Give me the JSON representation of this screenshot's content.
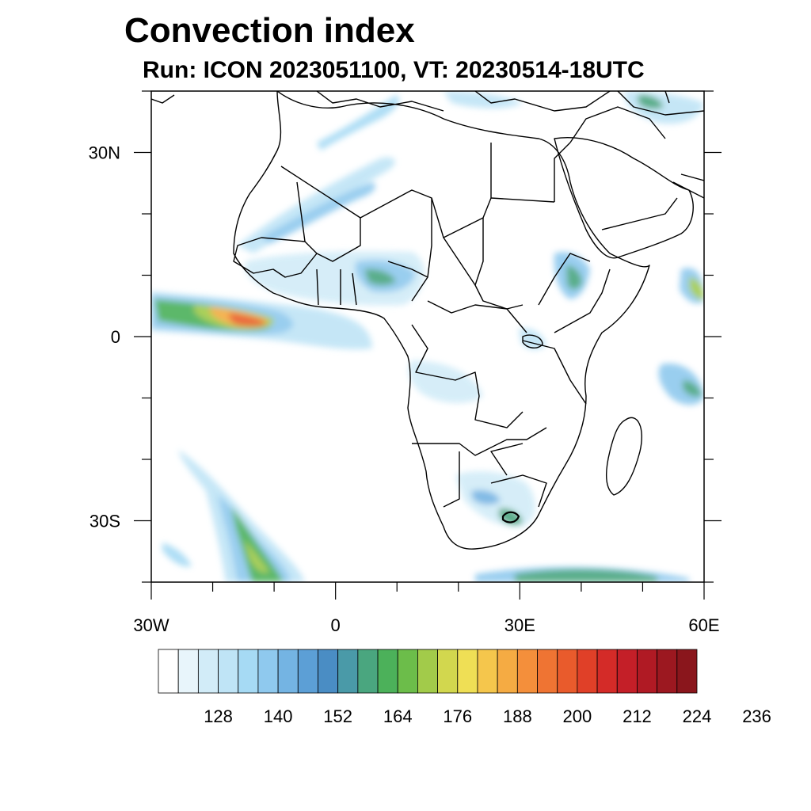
{
  "header": {
    "title": "Convection index",
    "subtitle": "Run: ICON 2023051100,  VT: 20230514-18UTC"
  },
  "map": {
    "lon_range": [
      -30,
      60
    ],
    "lat_range": [
      -40,
      40
    ],
    "lon_ticks": [
      {
        "value": -30,
        "label": "30W"
      },
      {
        "value": 0,
        "label": "0"
      },
      {
        "value": 30,
        "label": "30E"
      },
      {
        "value": 60,
        "label": "60E"
      }
    ],
    "lat_ticks": [
      {
        "value": 30,
        "label": "30N"
      },
      {
        "value": 0,
        "label": "0"
      },
      {
        "value": -30,
        "label": "30S"
      }
    ]
  },
  "colorbar": {
    "labels": [
      "128",
      "140",
      "152",
      "164",
      "176",
      "188",
      "200",
      "212",
      "224",
      "236"
    ],
    "colors": [
      "#ffffff",
      "#e8f5fb",
      "#d2ecf8",
      "#bfe4f6",
      "#a6daf4",
      "#8fc9ee",
      "#74b4e3",
      "#5c9fd6",
      "#4a8dc4",
      "#4a9aa8",
      "#4aa67f",
      "#4cb15a",
      "#6cbd4a",
      "#a2cb4a",
      "#d2d74e",
      "#efdf55",
      "#f5c64c",
      "#f5ab43",
      "#f48f3b",
      "#ef7433",
      "#e95b2c",
      "#e04028",
      "#d42b28",
      "#c41f28",
      "#b01a24",
      "#9c1820",
      "#8a161c"
    ]
  }
}
